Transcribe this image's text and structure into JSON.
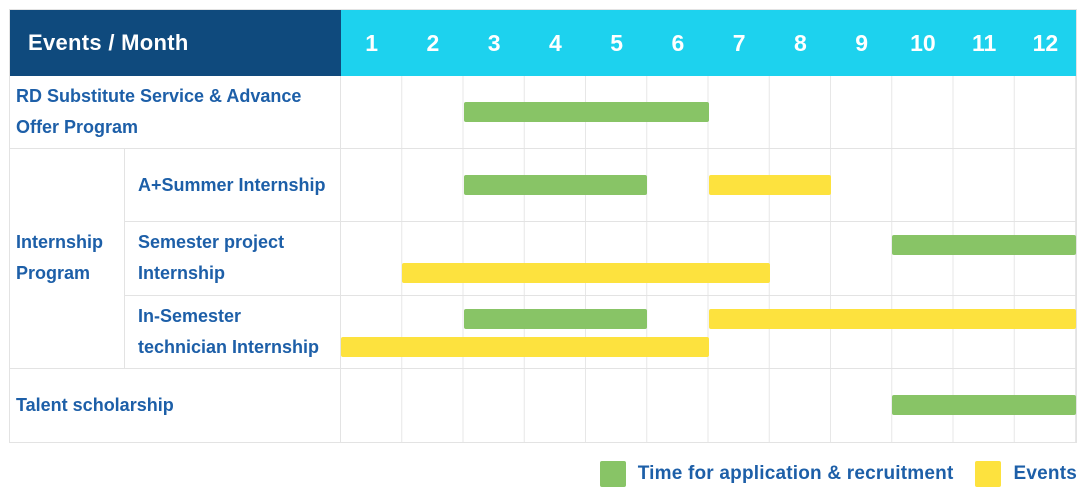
{
  "header": {
    "title": "Events / Month"
  },
  "colors": {
    "navy": "#0f4a7d",
    "cyan": "#1dd2ee",
    "green": "#88c466",
    "yellow": "#fde23e",
    "text_blue": "#1d5fa8",
    "grid": "#e7e7e7"
  },
  "chart_data": {
    "type": "gantt",
    "title": "Events / Month",
    "months": [
      "1",
      "2",
      "3",
      "4",
      "5",
      "6",
      "7",
      "8",
      "9",
      "10",
      "11",
      "12"
    ],
    "x_range": [
      1,
      12
    ],
    "legend_position": "bottom-right",
    "legend": [
      {
        "type": "application",
        "label": "Time for application & recruitment",
        "color": "#88c466"
      },
      {
        "type": "event",
        "label": "Events",
        "color": "#fde23e"
      }
    ],
    "rows": [
      {
        "label": "RD Substitute Service & Advance Offer Program",
        "group": null,
        "lanes": 1,
        "bars": [
          {
            "type": "application",
            "start_month": 3,
            "end_month": 6,
            "lane": 0
          }
        ]
      },
      {
        "label": "A+Summer Internship",
        "group": "Internship Program",
        "lanes": 1,
        "bars": [
          {
            "type": "application",
            "start_month": 3,
            "end_month": 5,
            "lane": 0
          },
          {
            "type": "event",
            "start_month": 7,
            "end_month": 8,
            "lane": 0
          }
        ]
      },
      {
        "label": "Semester project Internship",
        "group": "Internship Program",
        "lanes": 2,
        "bars": [
          {
            "type": "application",
            "start_month": 10,
            "end_month": 12,
            "lane": 0
          },
          {
            "type": "event",
            "start_month": 2,
            "end_month": 7,
            "lane": 1
          }
        ]
      },
      {
        "label": "In-Semester technician Internship",
        "group": "Internship Program",
        "lanes": 2,
        "bars": [
          {
            "type": "application",
            "start_month": 3,
            "end_month": 5,
            "lane": 0
          },
          {
            "type": "event",
            "start_month": 7,
            "end_month": 12,
            "lane": 0
          },
          {
            "type": "event",
            "start_month": 1,
            "end_month": 6,
            "lane": 1
          }
        ]
      },
      {
        "label": "Talent scholarship",
        "group": null,
        "lanes": 1,
        "bars": [
          {
            "type": "application",
            "start_month": 10,
            "end_month": 12,
            "lane": 0
          }
        ]
      }
    ]
  }
}
